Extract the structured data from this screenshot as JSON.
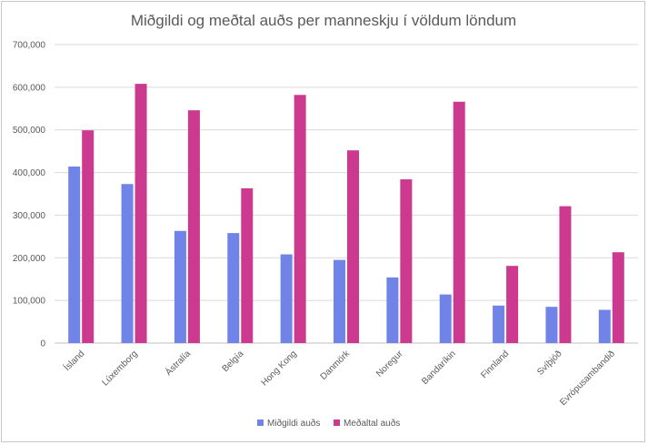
{
  "chart_data": {
    "type": "bar",
    "title": "Miðgildi og meðtal auðs per manneskju í völdum löndum",
    "categories": [
      "Ísland",
      "Lúxemborg",
      "Ástralía",
      "Belgía",
      "Hong Kong",
      "Danmörk",
      "Noregur",
      "Bandaríkin",
      "Finnland",
      "Svíþjóð",
      "Evrópusambandið"
    ],
    "series": [
      {
        "name": "Miðgildi auðs",
        "color": "#6f84e6",
        "values": [
          414000,
          373000,
          263000,
          258000,
          208000,
          195000,
          154000,
          114000,
          88000,
          85000,
          78000
        ]
      },
      {
        "name": "Meðaltal auðs",
        "color": "#cb3a8f",
        "values": [
          499000,
          608000,
          546000,
          363000,
          582000,
          452000,
          384000,
          566000,
          181000,
          321000,
          213000
        ]
      }
    ],
    "yticks": [
      "0",
      "100,000",
      "200,000",
      "300,000",
      "400,000",
      "500,000",
      "600,000",
      "700,000"
    ],
    "ylim": [
      0,
      700000
    ],
    "grid": true,
    "legend_position": "bottom"
  }
}
